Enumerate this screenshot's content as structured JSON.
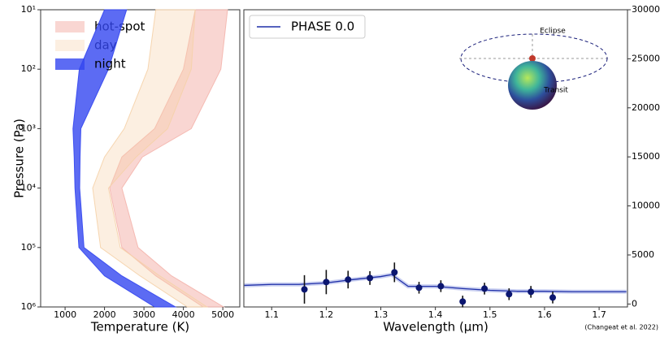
{
  "chart_data": [
    {
      "type": "profile",
      "xlabel": "Temperature (K)",
      "ylabel": "Pressure (Pa)",
      "xlim": [
        380,
        5430
      ],
      "xticks": [
        1000,
        2000,
        3000,
        4000,
        5000
      ],
      "ylim": [
        10,
        1000000
      ],
      "log_y": true,
      "y_inverted": true,
      "yticks": [
        {
          "value": 10,
          "label": "10¹"
        },
        {
          "value": 100,
          "label": "10²"
        },
        {
          "value": 1000,
          "label": "10³"
        },
        {
          "value": 10000,
          "label": "10⁴"
        },
        {
          "value": 100000,
          "label": "10⁵"
        },
        {
          "value": 1000000,
          "label": "10⁶"
        }
      ],
      "legend": "upper left",
      "y": [
        10,
        100,
        1000,
        3000,
        10000,
        100000,
        300000,
        1000000
      ],
      "series": [
        {
          "name": "hot-spot",
          "color": "#f4b5ad",
          "opacity": 0.55,
          "lower": [
            4300,
            4000,
            3270,
            2440,
            2130,
            2440,
            3300,
            4500
          ],
          "upper": [
            5120,
            4950,
            4200,
            2960,
            2440,
            2850,
            3700,
            5020
          ]
        },
        {
          "name": "day",
          "color": "#f5d2a8",
          "opacity": 0.35,
          "lower": [
            3300,
            3100,
            2500,
            2000,
            1700,
            1900,
            2900,
            4100
          ],
          "upper": [
            4300,
            4200,
            3600,
            2800,
            2100,
            2400,
            3400,
            4600
          ]
        },
        {
          "name": "night",
          "color": "#3346f0",
          "opacity": 0.8,
          "lower": [
            2000,
            1360,
            1200,
            1230,
            1250,
            1350,
            2000,
            3270
          ],
          "upper": [
            2560,
            2100,
            1400,
            1380,
            1370,
            1480,
            2440,
            3800
          ]
        }
      ]
    },
    {
      "type": "line",
      "xlabel": "Wavelength (μm)",
      "xlim": [
        1.049,
        1.752
      ],
      "xticks": [
        1.1,
        1.2,
        1.3,
        1.4,
        1.5,
        1.6,
        1.7
      ],
      "ylim": [
        -300,
        30000
      ],
      "yticks": [
        0,
        5000,
        10000,
        15000,
        20000,
        25000,
        30000
      ],
      "legend": "upper left",
      "series": [
        {
          "name": "PHASE 0.0",
          "color": "#1f2fa8",
          "x": [
            1.05,
            1.1,
            1.15,
            1.2,
            1.25,
            1.3,
            1.32,
            1.35,
            1.4,
            1.45,
            1.5,
            1.55,
            1.6,
            1.65,
            1.7,
            1.75
          ],
          "values": [
            1900,
            2000,
            2000,
            2150,
            2500,
            2800,
            3000,
            1800,
            1800,
            1570,
            1400,
            1300,
            1300,
            1250,
            1250,
            1250
          ]
        }
      ],
      "points": {
        "color": "#0b1670",
        "x": [
          1.16,
          1.2,
          1.24,
          1.28,
          1.325,
          1.37,
          1.41,
          1.45,
          1.49,
          1.535,
          1.575,
          1.615
        ],
        "values": [
          1490,
          2240,
          2490,
          2650,
          3230,
          1660,
          1820,
          250,
          1570,
          1000,
          1240,
          660
        ],
        "errors": [
          1450,
          1240,
          900,
          700,
          1000,
          600,
          600,
          600,
          600,
          600,
          600,
          600
        ]
      },
      "annotations": [
        "Eclipse",
        "Transit",
        "(Changeat et al. 2022)"
      ]
    }
  ]
}
